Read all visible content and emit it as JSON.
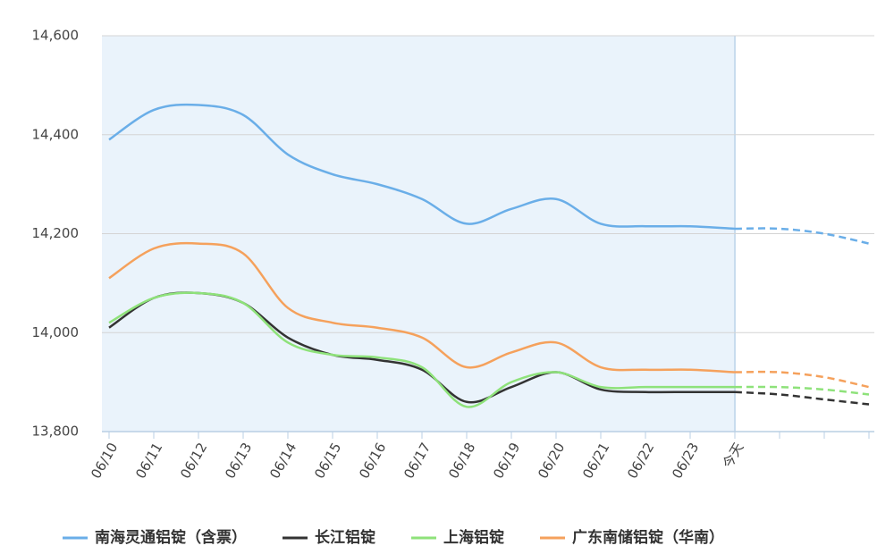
{
  "chart_data": {
    "type": "line",
    "categories": [
      "06/10",
      "06/11",
      "06/12",
      "06/13",
      "06/14",
      "06/15",
      "06/16",
      "06/17",
      "06/18",
      "06/19",
      "06/20",
      "06/21",
      "06/22",
      "06/23",
      "今天",
      null,
      null,
      null
    ],
    "dashed_from": 14,
    "ylim": [
      13800,
      14600
    ],
    "yticks": [
      {
        "value": 13800,
        "label": "13,800"
      },
      {
        "value": 14000,
        "label": "14,000"
      },
      {
        "value": 14200,
        "label": "14,200"
      },
      {
        "value": 14400,
        "label": "14,400"
      },
      {
        "value": 14600,
        "label": "14,600"
      }
    ],
    "grid": true,
    "legend": "bottom",
    "series": [
      {
        "name": "南海灵通铝锭（含票）",
        "color": "#6aaee8",
        "values": [
          14390,
          14450,
          14460,
          14440,
          14360,
          14320,
          14300,
          14270,
          14220,
          14250,
          14270,
          14220,
          14215,
          14215,
          14210,
          14210,
          14200,
          14180
        ]
      },
      {
        "name": "长江铝锭",
        "color": "#333333",
        "values": [
          14010,
          14070,
          14080,
          14060,
          13990,
          13955,
          13945,
          13925,
          13860,
          13890,
          13920,
          13885,
          13880,
          13880,
          13880,
          13875,
          13865,
          13855
        ]
      },
      {
        "name": "上海铝锭",
        "color": "#8ee27a",
        "values": [
          14020,
          14070,
          14080,
          14060,
          13980,
          13955,
          13950,
          13930,
          13850,
          13900,
          13920,
          13890,
          13890,
          13890,
          13890,
          13890,
          13885,
          13875
        ]
      },
      {
        "name": "广东南储铝锭（华南）",
        "color": "#f5a15c",
        "values": [
          14110,
          14170,
          14180,
          14160,
          14050,
          14020,
          14010,
          13990,
          13930,
          13960,
          13980,
          13930,
          13925,
          13925,
          13920,
          13920,
          13910,
          13890
        ]
      }
    ]
  }
}
